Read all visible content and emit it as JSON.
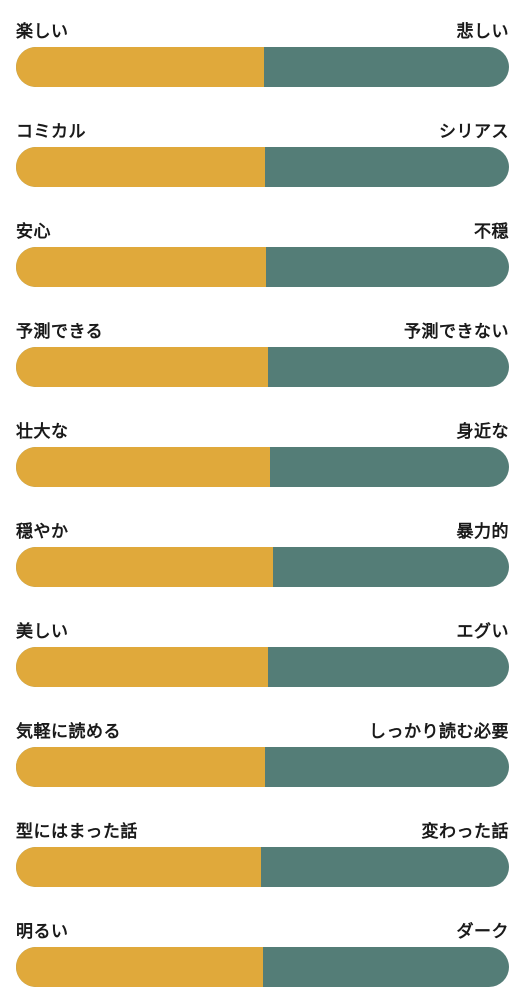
{
  "colors": {
    "left_fill": "#e0a93b",
    "right_fill": "#547d77"
  },
  "scales": [
    {
      "left": "楽しい",
      "right": "悲しい",
      "left_share": 0.503
    },
    {
      "left": "コミカル",
      "right": "シリアス",
      "left_share": 0.505
    },
    {
      "left": "安心",
      "right": "不穏",
      "left_share": 0.507
    },
    {
      "left": "予測できる",
      "right": "予測できない",
      "left_share": 0.511
    },
    {
      "left": "壮大な",
      "right": "身近な",
      "left_share": 0.515
    },
    {
      "left": "穏やか",
      "right": "暴力的",
      "left_share": 0.521
    },
    {
      "left": "美しい",
      "right": "エグい",
      "left_share": 0.511
    },
    {
      "left": "気軽に読める",
      "right": "しっかり読む必要",
      "left_share": 0.505
    },
    {
      "left": "型にはまった話",
      "right": "変わった話",
      "left_share": 0.497
    },
    {
      "left": "明るい",
      "right": "ダーク",
      "left_share": 0.501
    }
  ]
}
